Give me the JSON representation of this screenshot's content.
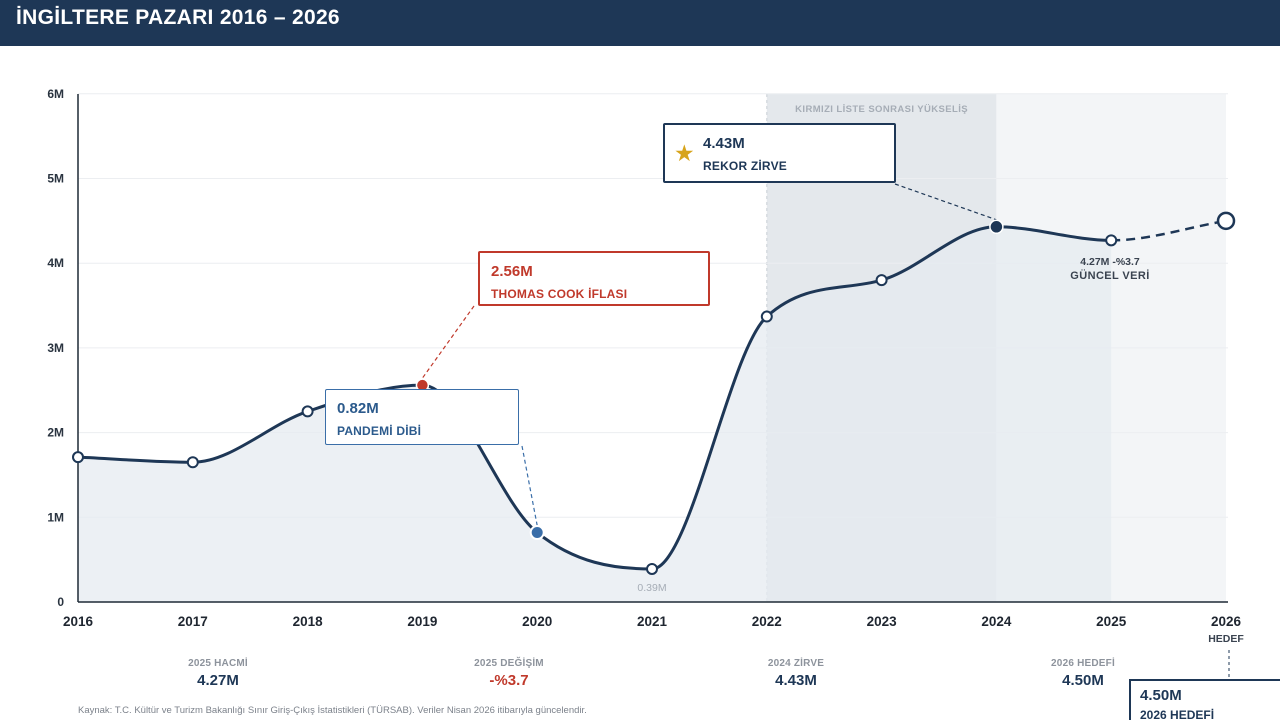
{
  "header": {
    "title": "İNGİLTERE PAZARI  2016 – 2026"
  },
  "colors": {
    "primary": "#1e3756",
    "danger": "#c0392b",
    "pandemic_blue": "#3a6ea8",
    "star": "#d7a41a",
    "area_fill": "#e6ebf0",
    "forecast_band": "#f3f5f7",
    "peak_band": "#e4e8ec"
  },
  "chart_data": {
    "type": "line",
    "x": [
      2016,
      2017,
      2018,
      2019,
      2020,
      2021,
      2022,
      2023,
      2024,
      2025,
      2026
    ],
    "x_tick_labels": [
      "2016",
      "2017",
      "2018",
      "2019",
      "2020",
      "2021",
      "2022",
      "2023",
      "2024",
      "2025",
      "2026"
    ],
    "x_sublabel": {
      "x": 2026,
      "text": "HEDEF"
    },
    "y_tick_labels": [
      "0",
      "1M",
      "2M",
      "3M",
      "4M",
      "5M",
      "6M"
    ],
    "ylim": [
      0,
      6
    ],
    "y_unit": "M",
    "series": [
      {
        "values": [
          1.71,
          1.65,
          2.25,
          2.56,
          0.82,
          0.39,
          3.37,
          3.8,
          4.43,
          4.27,
          4.5
        ],
        "projected_from_x": 2025
      }
    ],
    "shaded_regions": [
      {
        "from": 2022,
        "to": 2024,
        "label": "KIRMIZI LİSTE SONRASI YÜKSELİŞ"
      },
      {
        "from": 2024,
        "to": 2026,
        "label": ""
      }
    ],
    "point_labels": [
      {
        "x": 2021,
        "text": "0.39M"
      }
    ],
    "grid": true,
    "legend": "none"
  },
  "annotations": {
    "rekor": {
      "value": "4.43M",
      "label": "REKOR ZİRVE",
      "icon": "star-icon"
    },
    "thomas_cook": {
      "value": "2.56M",
      "label": "THOMAS COOK İFLASI"
    },
    "pandemi": {
      "value": "0.82M",
      "label": "PANDEMİ DİBİ"
    },
    "guncel": {
      "line1": "4.27M  -%3.7",
      "line2": "GÜNCEL VERİ"
    }
  },
  "stats": [
    {
      "label": "2025 HACMİ",
      "value": "4.27M"
    },
    {
      "label": "2025 DEĞİŞİM",
      "value": "-%3.7"
    },
    {
      "label": "2024 ZİRVE",
      "value": "4.43M"
    },
    {
      "label": "2026 HEDEFİ",
      "value": "4.50M"
    }
  ],
  "hedef_card": {
    "value": "4.50M",
    "label": "2026 HEDEFİ"
  },
  "source": "Kaynak: T.C. Kültür ve Turizm Bakanlığı Sınır Giriş-Çıkış İstatistikleri (TÜRSAB). Veriler Nisan 2026 itibarıyla güncelendir."
}
